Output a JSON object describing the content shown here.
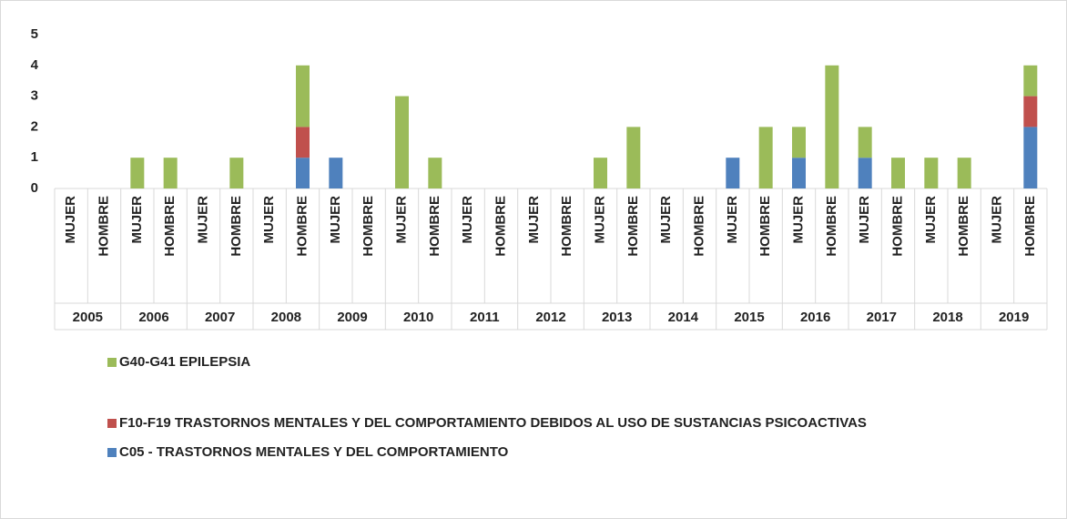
{
  "chart_data": {
    "type": "stacked_bar",
    "groups": [
      "2005",
      "2006",
      "2007",
      "2008",
      "2009",
      "2010",
      "2011",
      "2012",
      "2013",
      "2014",
      "2015",
      "2016",
      "2017",
      "2018",
      "2019"
    ],
    "categories": [
      "MUJER",
      "HOMBRE",
      "MUJER",
      "HOMBRE",
      "MUJER",
      "HOMBRE",
      "MUJER",
      "HOMBRE",
      "MUJER",
      "HOMBRE",
      "MUJER",
      "HOMBRE",
      "MUJER",
      "HOMBRE",
      "MUJER",
      "HOMBRE",
      "MUJER",
      "HOMBRE",
      "MUJER",
      "HOMBRE",
      "MUJER",
      "HOMBRE",
      "MUJER",
      "HOMBRE",
      "MUJER",
      "HOMBRE",
      "MUJER",
      "HOMBRE",
      "MUJER",
      "HOMBRE"
    ],
    "series": [
      {
        "name": "G40-G41 EPILEPSIA",
        "color": "#9bbb59",
        "values": [
          0,
          0,
          1,
          1,
          0,
          1,
          0,
          2,
          0,
          0,
          3,
          1,
          0,
          0,
          0,
          0,
          1,
          2,
          0,
          0,
          0,
          2,
          1,
          4,
          1,
          1,
          1,
          1,
          0,
          1
        ]
      },
      {
        "name": "F10-F19 TRASTORNOS MENTALES Y DEL COMPORTAMIENTO DEBIDOS AL USO DE SUSTANCIAS PSICOACTIVAS",
        "color": "#c0504d",
        "values": [
          0,
          0,
          0,
          0,
          0,
          0,
          0,
          1,
          0,
          0,
          0,
          0,
          0,
          0,
          0,
          0,
          0,
          0,
          0,
          0,
          0,
          0,
          0,
          0,
          0,
          0,
          0,
          0,
          0,
          1
        ]
      },
      {
        "name": "C05 - TRASTORNOS MENTALES Y DEL COMPORTAMIENTO",
        "color": "#4f81bd",
        "values": [
          0,
          0,
          0,
          0,
          0,
          0,
          0,
          1,
          1,
          0,
          0,
          0,
          0,
          0,
          0,
          0,
          0,
          0,
          0,
          0,
          1,
          0,
          1,
          0,
          1,
          0,
          0,
          0,
          0,
          2
        ]
      }
    ],
    "ylim": [
      0,
      5
    ],
    "yticks": [
      0,
      1,
      2,
      3,
      4,
      5
    ],
    "grid": false
  }
}
